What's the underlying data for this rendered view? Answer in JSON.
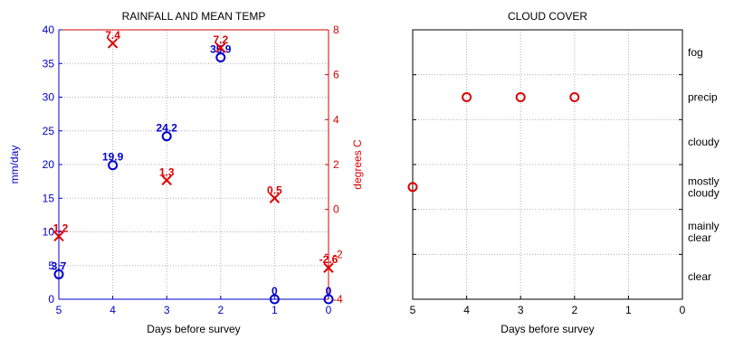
{
  "chart_data": [
    {
      "type": "scatter",
      "title": "RAINFALL AND MEAN TEMP",
      "xlabel": "Days before survey",
      "ylabel": "mm/day",
      "y2label": "degrees C",
      "x_reversed": true,
      "xlim": [
        0,
        5
      ],
      "xticks": [
        "5",
        "4",
        "3",
        "2",
        "1",
        "0"
      ],
      "ylim": [
        0,
        40
      ],
      "yticks": [
        "0",
        "5",
        "10",
        "15",
        "20",
        "25",
        "30",
        "35",
        "40"
      ],
      "y2lim": [
        -4,
        8
      ],
      "y2ticks": [
        "-4",
        "-2",
        "0",
        "2",
        "4",
        "6",
        "8"
      ],
      "grid": true,
      "left_axis_color": "#0000cc",
      "right_axis_color": "#dd0000",
      "series": [
        {
          "axis": "left",
          "marker": "circle",
          "color": "#0000cc",
          "x": [
            5,
            4,
            3,
            2,
            1,
            0
          ],
          "y": [
            3.7,
            19.9,
            24.2,
            35.9,
            0,
            0
          ],
          "labels": [
            "3.7",
            "19.9",
            "24.2",
            "35.9",
            "0",
            "0"
          ]
        },
        {
          "axis": "right",
          "marker": "x",
          "color": "#dd0000",
          "x": [
            5,
            4,
            3,
            2,
            1,
            0
          ],
          "y": [
            -1.2,
            7.4,
            1.3,
            7.2,
            0.5,
            -2.6
          ],
          "labels": [
            "-1.2",
            "7.4",
            "1.3",
            "7.2",
            "0.5",
            "-2.6"
          ]
        }
      ]
    },
    {
      "type": "scatter",
      "title": "CLOUD COVER",
      "xlabel": "Days before survey",
      "ylabel": "",
      "x_reversed": true,
      "xlim": [
        0,
        5
      ],
      "xticks": [
        "5",
        "4",
        "3",
        "2",
        "1",
        "0"
      ],
      "categories": [
        "clear",
        "mainly clear",
        "mostly cloudy",
        "cloudy",
        "precip",
        "fog"
      ],
      "category_lines": [
        [
          "clear"
        ],
        [
          "mainly",
          "clear"
        ],
        [
          "mostly",
          "cloudy"
        ],
        [
          "cloudy"
        ],
        [
          "precip"
        ],
        [
          "fog"
        ]
      ],
      "grid": true,
      "series": [
        {
          "marker": "circle",
          "color": "#dd0000",
          "x": [
            5,
            4,
            3,
            2
          ],
          "y": [
            "mostly cloudy",
            "precip",
            "precip",
            "precip"
          ]
        }
      ]
    }
  ]
}
